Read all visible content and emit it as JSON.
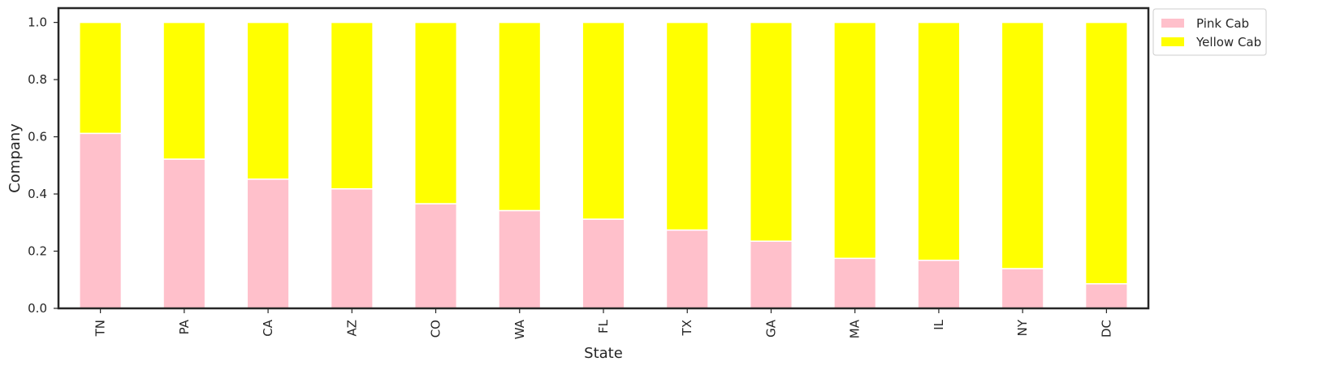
{
  "chart_data": {
    "type": "bar",
    "stacked": true,
    "title": "",
    "xlabel": "State",
    "ylabel": "Company",
    "ylim": [
      0,
      1.05
    ],
    "yticks": [
      "0.0",
      "0.2",
      "0.4",
      "0.6",
      "0.8",
      "1.0"
    ],
    "grid": false,
    "legend_position": "outside top-right",
    "categories": [
      "TN",
      "PA",
      "CA",
      "AZ",
      "CO",
      "WA",
      "FL",
      "TX",
      "GA",
      "MA",
      "IL",
      "NY",
      "DC"
    ],
    "series": [
      {
        "name": "Pink Cab",
        "color": "#ffc0cb",
        "values": [
          0.612,
          0.522,
          0.452,
          0.418,
          0.366,
          0.342,
          0.312,
          0.274,
          0.235,
          0.175,
          0.168,
          0.139,
          0.086
        ]
      },
      {
        "name": "Yellow Cab",
        "color": "#ffff00",
        "values": [
          0.388,
          0.478,
          0.548,
          0.582,
          0.634,
          0.658,
          0.688,
          0.726,
          0.765,
          0.825,
          0.832,
          0.861,
          0.914
        ]
      }
    ]
  }
}
